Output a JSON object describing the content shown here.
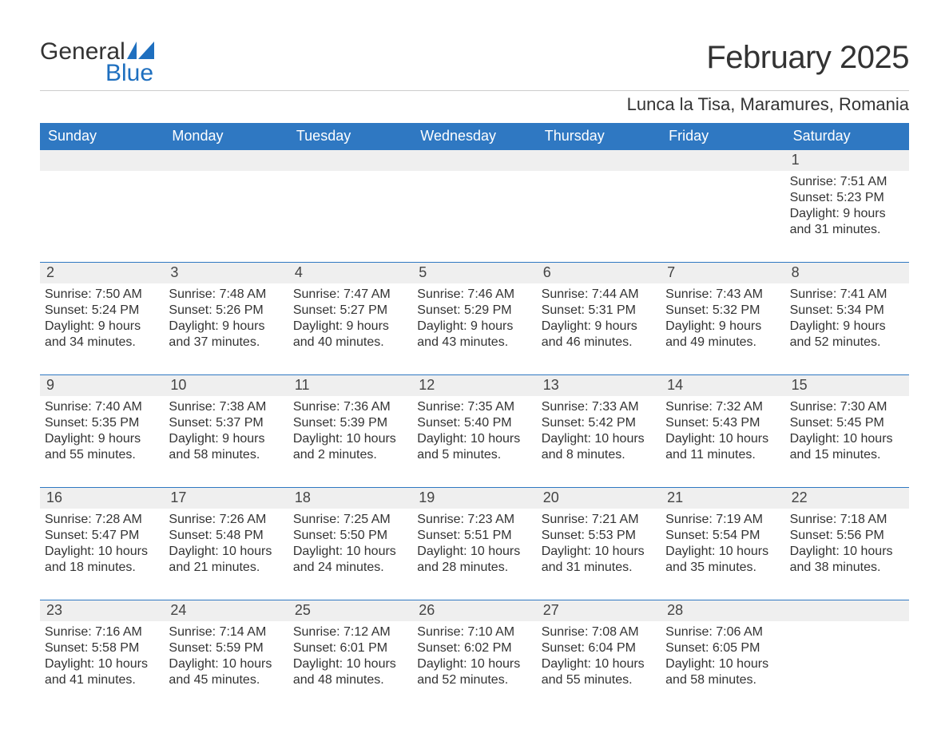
{
  "colors": {
    "brand_blue": "#1e6fbf",
    "header_blue": "#2f78c2",
    "row_gray": "#efefef",
    "text": "#333333",
    "divider": "#cccccc",
    "background": "#ffffff"
  },
  "logo": {
    "word1": "General",
    "word2": "Blue"
  },
  "title": "February 2025",
  "location": "Lunca la Tisa, Maramures, Romania",
  "weekday_labels": [
    "Sunday",
    "Monday",
    "Tuesday",
    "Wednesday",
    "Thursday",
    "Friday",
    "Saturday"
  ],
  "calendar": {
    "columns": 7,
    "weeks": [
      [
        {
          "empty": true
        },
        {
          "empty": true
        },
        {
          "empty": true
        },
        {
          "empty": true
        },
        {
          "empty": true
        },
        {
          "empty": true
        },
        {
          "day": "1",
          "sunrise": "Sunrise: 7:51 AM",
          "sunset": "Sunset: 5:23 PM",
          "daylight1": "Daylight: 9 hours",
          "daylight2": "and 31 minutes."
        }
      ],
      [
        {
          "day": "2",
          "sunrise": "Sunrise: 7:50 AM",
          "sunset": "Sunset: 5:24 PM",
          "daylight1": "Daylight: 9 hours",
          "daylight2": "and 34 minutes."
        },
        {
          "day": "3",
          "sunrise": "Sunrise: 7:48 AM",
          "sunset": "Sunset: 5:26 PM",
          "daylight1": "Daylight: 9 hours",
          "daylight2": "and 37 minutes."
        },
        {
          "day": "4",
          "sunrise": "Sunrise: 7:47 AM",
          "sunset": "Sunset: 5:27 PM",
          "daylight1": "Daylight: 9 hours",
          "daylight2": "and 40 minutes."
        },
        {
          "day": "5",
          "sunrise": "Sunrise: 7:46 AM",
          "sunset": "Sunset: 5:29 PM",
          "daylight1": "Daylight: 9 hours",
          "daylight2": "and 43 minutes."
        },
        {
          "day": "6",
          "sunrise": "Sunrise: 7:44 AM",
          "sunset": "Sunset: 5:31 PM",
          "daylight1": "Daylight: 9 hours",
          "daylight2": "and 46 minutes."
        },
        {
          "day": "7",
          "sunrise": "Sunrise: 7:43 AM",
          "sunset": "Sunset: 5:32 PM",
          "daylight1": "Daylight: 9 hours",
          "daylight2": "and 49 minutes."
        },
        {
          "day": "8",
          "sunrise": "Sunrise: 7:41 AM",
          "sunset": "Sunset: 5:34 PM",
          "daylight1": "Daylight: 9 hours",
          "daylight2": "and 52 minutes."
        }
      ],
      [
        {
          "day": "9",
          "sunrise": "Sunrise: 7:40 AM",
          "sunset": "Sunset: 5:35 PM",
          "daylight1": "Daylight: 9 hours",
          "daylight2": "and 55 minutes."
        },
        {
          "day": "10",
          "sunrise": "Sunrise: 7:38 AM",
          "sunset": "Sunset: 5:37 PM",
          "daylight1": "Daylight: 9 hours",
          "daylight2": "and 58 minutes."
        },
        {
          "day": "11",
          "sunrise": "Sunrise: 7:36 AM",
          "sunset": "Sunset: 5:39 PM",
          "daylight1": "Daylight: 10 hours",
          "daylight2": "and 2 minutes."
        },
        {
          "day": "12",
          "sunrise": "Sunrise: 7:35 AM",
          "sunset": "Sunset: 5:40 PM",
          "daylight1": "Daylight: 10 hours",
          "daylight2": "and 5 minutes."
        },
        {
          "day": "13",
          "sunrise": "Sunrise: 7:33 AM",
          "sunset": "Sunset: 5:42 PM",
          "daylight1": "Daylight: 10 hours",
          "daylight2": "and 8 minutes."
        },
        {
          "day": "14",
          "sunrise": "Sunrise: 7:32 AM",
          "sunset": "Sunset: 5:43 PM",
          "daylight1": "Daylight: 10 hours",
          "daylight2": "and 11 minutes."
        },
        {
          "day": "15",
          "sunrise": "Sunrise: 7:30 AM",
          "sunset": "Sunset: 5:45 PM",
          "daylight1": "Daylight: 10 hours",
          "daylight2": "and 15 minutes."
        }
      ],
      [
        {
          "day": "16",
          "sunrise": "Sunrise: 7:28 AM",
          "sunset": "Sunset: 5:47 PM",
          "daylight1": "Daylight: 10 hours",
          "daylight2": "and 18 minutes."
        },
        {
          "day": "17",
          "sunrise": "Sunrise: 7:26 AM",
          "sunset": "Sunset: 5:48 PM",
          "daylight1": "Daylight: 10 hours",
          "daylight2": "and 21 minutes."
        },
        {
          "day": "18",
          "sunrise": "Sunrise: 7:25 AM",
          "sunset": "Sunset: 5:50 PM",
          "daylight1": "Daylight: 10 hours",
          "daylight2": "and 24 minutes."
        },
        {
          "day": "19",
          "sunrise": "Sunrise: 7:23 AM",
          "sunset": "Sunset: 5:51 PM",
          "daylight1": "Daylight: 10 hours",
          "daylight2": "and 28 minutes."
        },
        {
          "day": "20",
          "sunrise": "Sunrise: 7:21 AM",
          "sunset": "Sunset: 5:53 PM",
          "daylight1": "Daylight: 10 hours",
          "daylight2": "and 31 minutes."
        },
        {
          "day": "21",
          "sunrise": "Sunrise: 7:19 AM",
          "sunset": "Sunset: 5:54 PM",
          "daylight1": "Daylight: 10 hours",
          "daylight2": "and 35 minutes."
        },
        {
          "day": "22",
          "sunrise": "Sunrise: 7:18 AM",
          "sunset": "Sunset: 5:56 PM",
          "daylight1": "Daylight: 10 hours",
          "daylight2": "and 38 minutes."
        }
      ],
      [
        {
          "day": "23",
          "sunrise": "Sunrise: 7:16 AM",
          "sunset": "Sunset: 5:58 PM",
          "daylight1": "Daylight: 10 hours",
          "daylight2": "and 41 minutes."
        },
        {
          "day": "24",
          "sunrise": "Sunrise: 7:14 AM",
          "sunset": "Sunset: 5:59 PM",
          "daylight1": "Daylight: 10 hours",
          "daylight2": "and 45 minutes."
        },
        {
          "day": "25",
          "sunrise": "Sunrise: 7:12 AM",
          "sunset": "Sunset: 6:01 PM",
          "daylight1": "Daylight: 10 hours",
          "daylight2": "and 48 minutes."
        },
        {
          "day": "26",
          "sunrise": "Sunrise: 7:10 AM",
          "sunset": "Sunset: 6:02 PM",
          "daylight1": "Daylight: 10 hours",
          "daylight2": "and 52 minutes."
        },
        {
          "day": "27",
          "sunrise": "Sunrise: 7:08 AM",
          "sunset": "Sunset: 6:04 PM",
          "daylight1": "Daylight: 10 hours",
          "daylight2": "and 55 minutes."
        },
        {
          "day": "28",
          "sunrise": "Sunrise: 7:06 AM",
          "sunset": "Sunset: 6:05 PM",
          "daylight1": "Daylight: 10 hours",
          "daylight2": "and 58 minutes."
        },
        {
          "empty": true
        }
      ]
    ]
  }
}
